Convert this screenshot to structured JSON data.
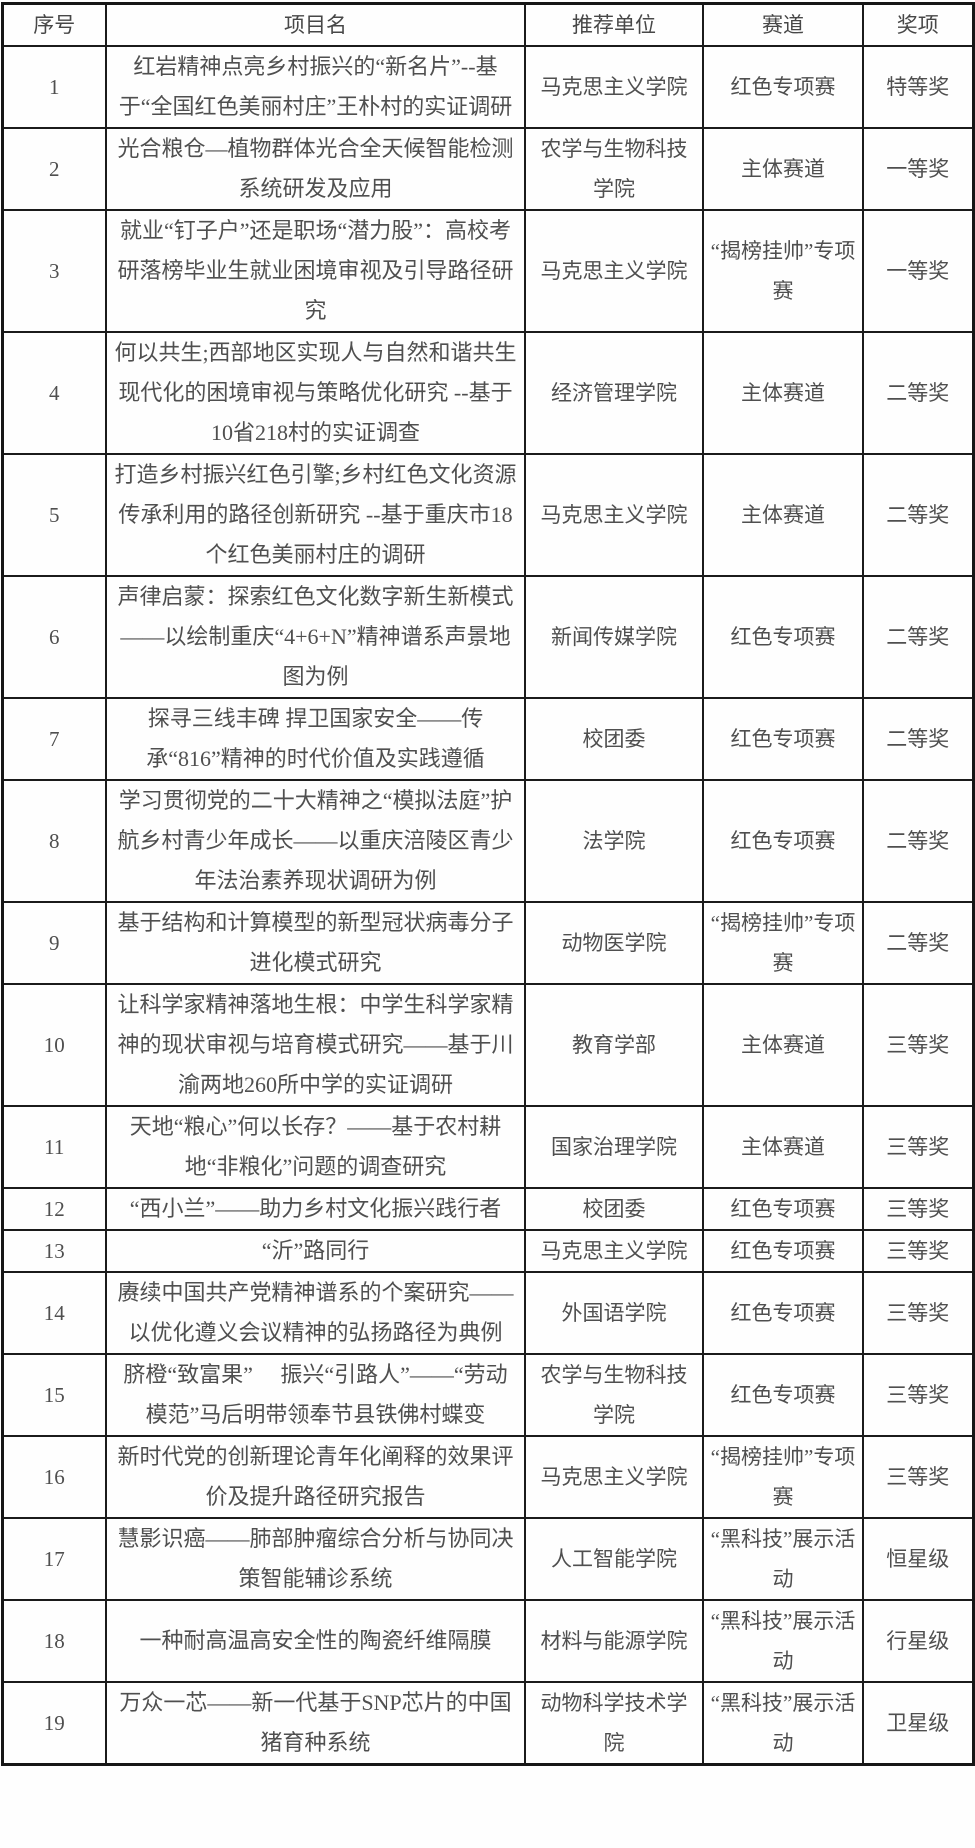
{
  "table": {
    "columns": [
      "序号",
      "项目名",
      "推荐单位",
      "赛道",
      "奖项"
    ],
    "rows": [
      {
        "no": "1",
        "project": "红岩精神点亮乡村振兴的“新名片”--基于“全国红色美丽村庄”王朴村的实证调研",
        "unit": "马克思主义学院",
        "track": "红色专项赛",
        "award": "特等奖"
      },
      {
        "no": "2",
        "project": "光合粮仓—植物群体光合全天候智能检测系统研发及应用",
        "unit": "农学与生物科技学院",
        "track": "主体赛道",
        "award": "一等奖"
      },
      {
        "no": "3",
        "project": "就业“钉子户”还是职场“潜力股”：高校考研落榜毕业生就业困境审视及引导路径研究",
        "unit": "马克思主义学院",
        "track": "“揭榜挂帅”专项赛",
        "award": "一等奖"
      },
      {
        "no": "4",
        "project": "何以共生;西部地区实现人与自然和谐共生现代化的困境审视与策略优化研究 --基于10省218村的实证调查",
        "unit": "经济管理学院",
        "track": "主体赛道",
        "award": "二等奖"
      },
      {
        "no": "5",
        "project": "打造乡村振兴红色引擎;乡村红色文化资源传承利用的路径创新研究 --基于重庆市18个红色美丽村庄的调研",
        "unit": "马克思主义学院",
        "track": "主体赛道",
        "award": "二等奖"
      },
      {
        "no": "6",
        "project": "声律启蒙：探索红色文化数字新生新模式——以绘制重庆“4+6+N”精神谱系声景地图为例",
        "unit": "新闻传媒学院",
        "track": "红色专项赛",
        "award": "二等奖"
      },
      {
        "no": "7",
        "project": "探寻三线丰碑 捍卫国家安全——传承“816”精神的时代价值及实践遵循",
        "unit": "校团委",
        "track": "红色专项赛",
        "award": "二等奖"
      },
      {
        "no": "8",
        "project": "学习贯彻党的二十大精神之“模拟法庭”护航乡村青少年成长——以重庆涪陵区青少年法治素养现状调研为例",
        "unit": "法学院",
        "track": "红色专项赛",
        "award": "二等奖"
      },
      {
        "no": "9",
        "project": "基于结构和计算模型的新型冠状病毒分子进化模式研究",
        "unit": "动物医学院",
        "track": "“揭榜挂帅”专项赛",
        "award": "二等奖"
      },
      {
        "no": "10",
        "project": "让科学家精神落地生根：中学生科学家精神的现状审视与培育模式研究——基于川渝两地260所中学的实证调研",
        "unit": "教育学部",
        "track": "主体赛道",
        "award": "三等奖"
      },
      {
        "no": "11",
        "project": "天地“粮心”何以长存？——基于农村耕地“非粮化”问题的调查研究",
        "unit": "国家治理学院",
        "track": "主体赛道",
        "award": "三等奖"
      },
      {
        "no": "12",
        "project": "“西小兰”——助力乡村文化振兴践行者",
        "unit": "校团委",
        "track": "红色专项赛",
        "award": "三等奖"
      },
      {
        "no": "13",
        "project": "“沂”路同行",
        "unit": "马克思主义学院",
        "track": "红色专项赛",
        "award": "三等奖"
      },
      {
        "no": "14",
        "project": "赓续中国共产党精神谱系的个案研究——以优化遵义会议精神的弘扬路径为典例",
        "unit": "外国语学院",
        "track": "红色专项赛",
        "award": "三等奖"
      },
      {
        "no": "15",
        "project": "脐橙“致富果”　 振兴“引路人”——“劳动模范”马后明带领奉节县铁佛村蝶变",
        "unit": "农学与生物科技学院",
        "track": "红色专项赛",
        "award": "三等奖"
      },
      {
        "no": "16",
        "project": "新时代党的创新理论青年化阐释的效果评价及提升路径研究报告",
        "unit": "马克思主义学院",
        "track": "“揭榜挂帅”专项赛",
        "award": "三等奖"
      },
      {
        "no": "17",
        "project": "慧影识癌——肺部肿瘤综合分析与协同决策智能辅诊系统",
        "unit": "人工智能学院",
        "track": "“黑科技”展示活动",
        "award": "恒星级"
      },
      {
        "no": "18",
        "project": "一种耐高温高安全性的陶瓷纤维隔膜",
        "unit": "材料与能源学院",
        "track": "“黑科技”展示活动",
        "award": "行星级"
      },
      {
        "no": "19",
        "project": "万众一芯——新一代基于SNP芯片的中国猪育种系统",
        "unit": "动物科学技术学院",
        "track": "“黑科技”展示活动",
        "award": "卫星级"
      }
    ]
  }
}
